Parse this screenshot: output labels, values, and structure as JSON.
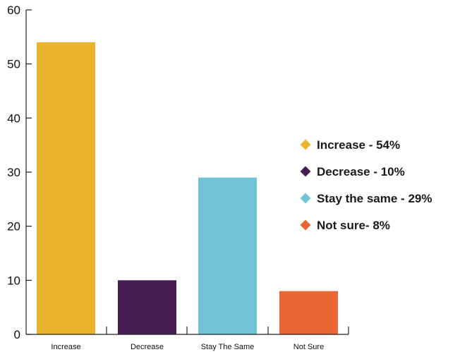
{
  "chart_data": {
    "type": "bar",
    "categories": [
      "Increase",
      "Decrease",
      "Stay The Same",
      "Not Sure"
    ],
    "values": [
      54,
      10,
      29,
      8
    ],
    "colors": [
      "#E9B52D",
      "#461D55",
      "#72C3D6",
      "#EA6634"
    ],
    "ylim": [
      0,
      60
    ],
    "yticks": [
      0,
      10,
      20,
      30,
      40,
      50,
      60
    ],
    "title": "",
    "xlabel": "",
    "ylabel": "",
    "grid": false,
    "legend_position": "right",
    "legend": [
      {
        "label": "Increase - 54%",
        "color": "#E9B52D",
        "icon": "diamond-icon"
      },
      {
        "label": "Decrease - 10%",
        "color": "#461D55",
        "icon": "diamond-icon"
      },
      {
        "label": "Stay the same - 29%",
        "color": "#72C3D6",
        "icon": "diamond-icon"
      },
      {
        "label": "Not sure- 8%",
        "color": "#EA6634",
        "icon": "diamond-icon"
      }
    ]
  }
}
